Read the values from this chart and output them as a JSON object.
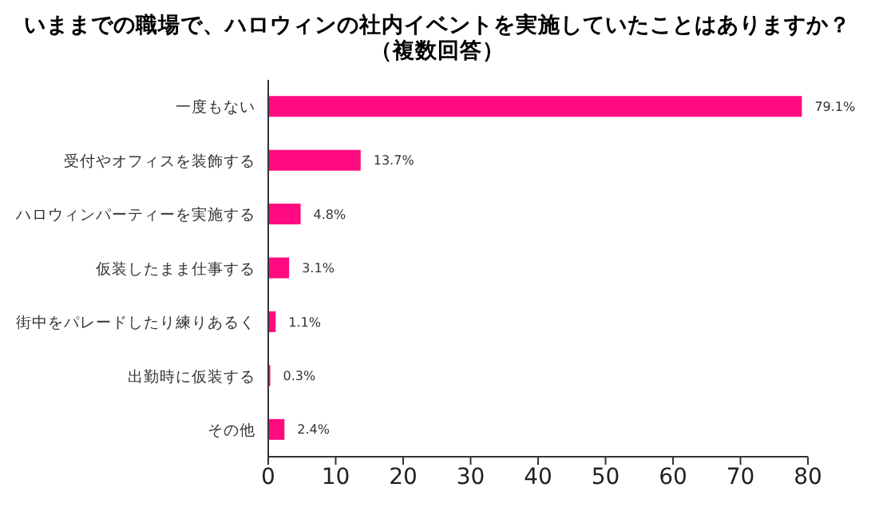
{
  "chart_data": {
    "type": "bar",
    "orientation": "horizontal",
    "title": "いままでの職場で、ハロウィンの社内イベントを実施していたことはありますか？",
    "subtitle": "（複数回答）",
    "categories": [
      "一度もない",
      "受付やオフィスを装飾する",
      "ハロウィンパーティーを実施する",
      "仮装したまま仕事する",
      "街中をパレードしたり練りあるく",
      "出勤時に仮装する",
      "その他"
    ],
    "values": [
      79.1,
      13.7,
      4.8,
      3.1,
      1.1,
      0.3,
      2.4
    ],
    "value_labels": [
      "79.1%",
      "13.7%",
      "4.8%",
      "3.1%",
      "1.1%",
      "0.3%",
      "2.4%"
    ],
    "color": "#ff0a7f",
    "xlim": [
      0,
      80
    ],
    "xticks": [
      0,
      10,
      20,
      30,
      40,
      50,
      60,
      70,
      80
    ],
    "grid": false
  }
}
